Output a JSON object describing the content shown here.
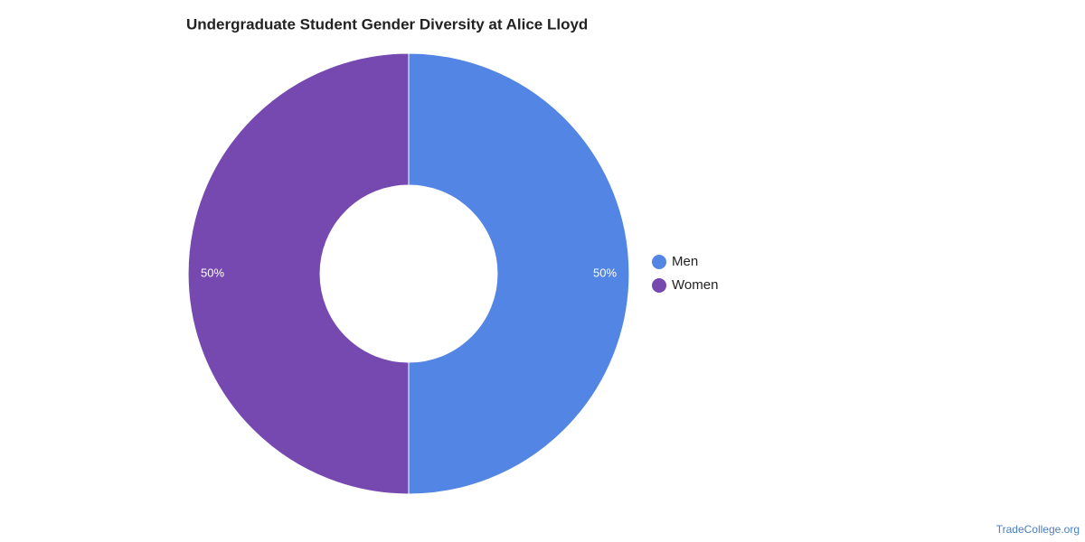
{
  "chart_data": {
    "type": "donut",
    "title": "Undergraduate Student Gender Diversity at Alice Lloyd",
    "categories": [
      "Men",
      "Women"
    ],
    "values": [
      50,
      50
    ],
    "value_labels": [
      "50%",
      "50%"
    ],
    "colors": [
      "#5386e4",
      "#7649b0"
    ],
    "legend": "right",
    "source": "TradeCollege.org"
  }
}
